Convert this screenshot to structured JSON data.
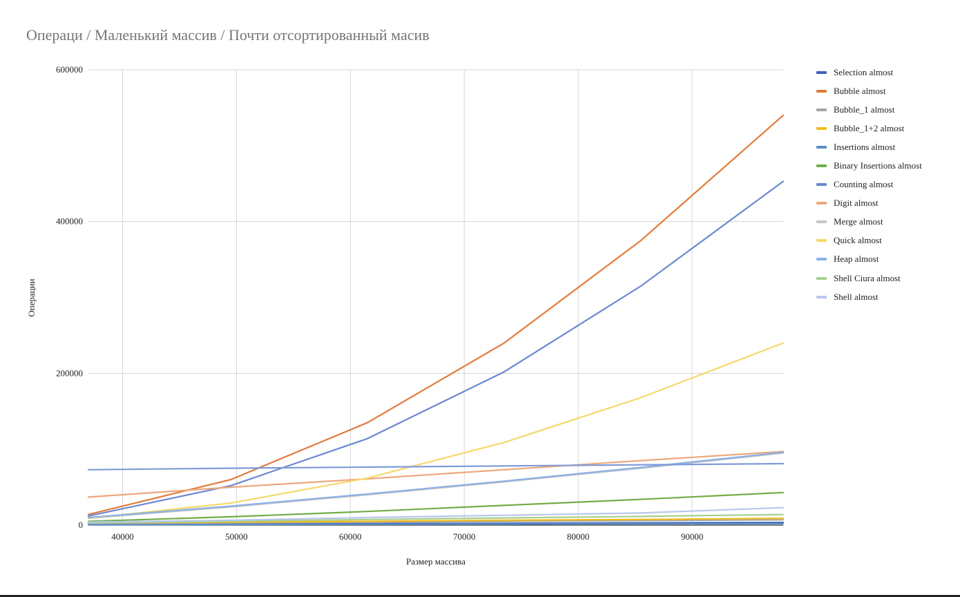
{
  "chart_data": {
    "type": "line",
    "title": "Операци / Маленький массив / Почти отсортированный масив",
    "xlabel": "Размер массива",
    "ylabel": "Операции",
    "xlim": [
      37000,
      98000
    ],
    "ylim": [
      0,
      600000
    ],
    "x_ticks": [
      "40000",
      "50000",
      "60000",
      "70000",
      "80000",
      "90000"
    ],
    "y_ticks": [
      "0",
      "200000",
      "400000",
      "600000"
    ],
    "grid": true,
    "legend_position": "right",
    "x": [
      37000,
      49500,
      61500,
      73500,
      85500,
      98000
    ],
    "series": [
      {
        "name": "Selection almost",
        "color": "#3d63b5",
        "values": [
          1000,
          1500,
          2000,
          2500,
          3000,
          3500
        ]
      },
      {
        "name": "Bubble almost",
        "color": "#e07b39",
        "values": [
          14000,
          60000,
          135000,
          240000,
          375000,
          540000
        ]
      },
      {
        "name": "Bubble_1 almost",
        "color": "#a5a5a5",
        "values": [
          2000,
          3000,
          4000,
          5000,
          6000,
          7000
        ]
      },
      {
        "name": "Bubble_1+2 almost",
        "color": "#f2bc1b",
        "values": [
          3000,
          4000,
          5000,
          6500,
          7500,
          9000
        ]
      },
      {
        "name": "Insertions almost",
        "color": "#5b8fc9",
        "values": [
          500,
          800,
          1100,
          1400,
          1700,
          2000
        ]
      },
      {
        "name": "Binary Insertions almost",
        "color": "#70ad47",
        "values": [
          5000,
          11000,
          18000,
          26000,
          34000,
          43000
        ]
      },
      {
        "name": "Counting almost",
        "color": "#6b87d2",
        "values": [
          12000,
          52000,
          114000,
          202000,
          315000,
          453000
        ]
      },
      {
        "name": "Digit almost",
        "color": "#eda77c",
        "values": [
          37000,
          50000,
          61000,
          73000,
          85000,
          97000
        ]
      },
      {
        "name": "Merge almost",
        "color": "#c6c6c6",
        "values": [
          9000,
          24000,
          40000,
          57000,
          75000,
          95000
        ]
      },
      {
        "name": "Quick almost",
        "color": "#f7d86a",
        "values": [
          9000,
          29000,
          62000,
          109000,
          168000,
          240000
        ]
      },
      {
        "name": "Heap almost",
        "color": "#8bb0e6",
        "values": [
          10000,
          25000,
          41000,
          58000,
          76000,
          96000
        ]
      },
      {
        "name": "Shell Ciura almost",
        "color": "#a7cf8d",
        "values": [
          3000,
          5000,
          7500,
          9500,
          11500,
          14000
        ]
      },
      {
        "name": "Shell almost",
        "color": "#b8c7ec",
        "values": [
          4000,
          6500,
          10000,
          13000,
          16000,
          23000
        ]
      },
      {
        "name": "",
        "color": "#7f9ad9",
        "values": [
          73000,
          75000,
          76500,
          78000,
          79500,
          81000
        ]
      }
    ]
  }
}
